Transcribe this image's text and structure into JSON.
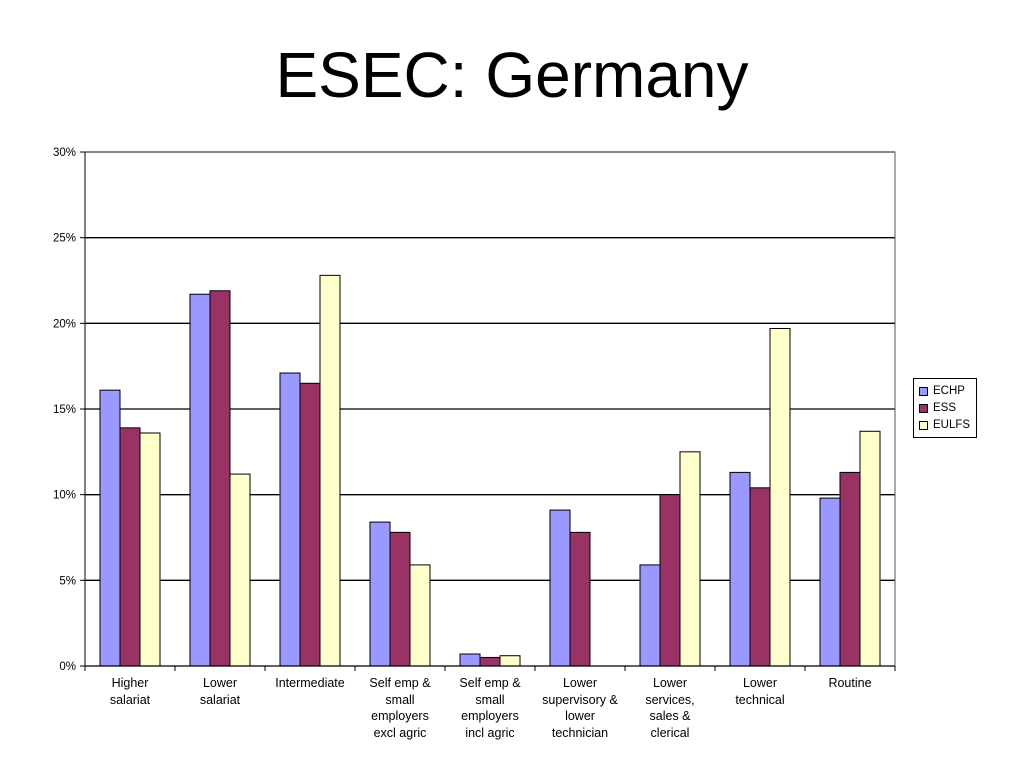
{
  "title": "ESEC: Germany",
  "colors": {
    "ECHP": "#9999ff",
    "ESS": "#993366",
    "EULFS": "#ffffcc"
  },
  "chart_data": {
    "type": "bar",
    "title": "ESEC: Germany",
    "xlabel": "",
    "ylabel": "",
    "ylim": [
      0,
      30
    ],
    "yticks": [
      "0%",
      "5%",
      "10%",
      "15%",
      "20%",
      "25%",
      "30%"
    ],
    "grid": true,
    "legend_position": "right",
    "categories": [
      "Higher\nsalariat",
      "Lower\nsalariat",
      "Intermediate",
      "Self emp &\nsmall\nemployers\nexcl agric",
      "Self emp &\nsmall\nemployers\nincl agric",
      "Lower\nsupervisory &\nlower\ntechnician",
      "Lower\nservices,\nsales &\nclerical",
      "Lower\ntechnical",
      "Routine"
    ],
    "series": [
      {
        "name": "ECHP",
        "values": [
          16.1,
          21.7,
          17.1,
          8.4,
          0.7,
          9.1,
          5.9,
          11.3,
          9.8
        ]
      },
      {
        "name": "ESS",
        "values": [
          13.9,
          21.9,
          16.5,
          7.8,
          0.5,
          7.8,
          10.0,
          10.4,
          11.3
        ]
      },
      {
        "name": "EULFS",
        "values": [
          13.6,
          11.2,
          22.8,
          5.9,
          0.6,
          null,
          12.5,
          19.7,
          13.7
        ]
      }
    ]
  }
}
